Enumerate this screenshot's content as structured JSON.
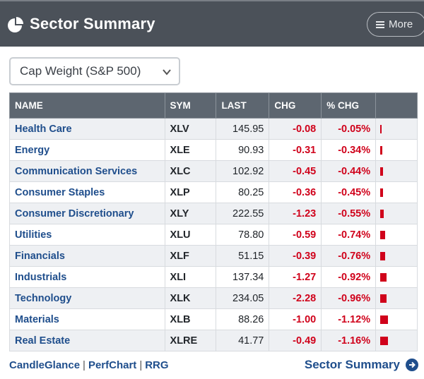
{
  "header": {
    "title": "Sector Summary",
    "more_label": "More"
  },
  "selector": {
    "value": "Cap Weight (S&P 500)"
  },
  "table": {
    "columns": [
      "NAME",
      "SYM",
      "LAST",
      "CHG",
      "% CHG",
      ""
    ],
    "rows": [
      {
        "name": "Health Care",
        "sym": "XLV",
        "last": "145.95",
        "chg": "-0.08",
        "pct": "-0.05%",
        "pct_value": -0.05
      },
      {
        "name": "Energy",
        "sym": "XLE",
        "last": "90.93",
        "chg": "-0.31",
        "pct": "-0.34%",
        "pct_value": -0.34
      },
      {
        "name": "Communication Services",
        "sym": "XLC",
        "last": "102.92",
        "chg": "-0.45",
        "pct": "-0.44%",
        "pct_value": -0.44
      },
      {
        "name": "Consumer Staples",
        "sym": "XLP",
        "last": "80.25",
        "chg": "-0.36",
        "pct": "-0.45%",
        "pct_value": -0.45
      },
      {
        "name": "Consumer Discretionary",
        "sym": "XLY",
        "last": "222.55",
        "chg": "-1.23",
        "pct": "-0.55%",
        "pct_value": -0.55
      },
      {
        "name": "Utilities",
        "sym": "XLU",
        "last": "78.80",
        "chg": "-0.59",
        "pct": "-0.74%",
        "pct_value": -0.74
      },
      {
        "name": "Financials",
        "sym": "XLF",
        "last": "51.15",
        "chg": "-0.39",
        "pct": "-0.76%",
        "pct_value": -0.76
      },
      {
        "name": "Industrials",
        "sym": "XLI",
        "last": "137.34",
        "chg": "-1.27",
        "pct": "-0.92%",
        "pct_value": -0.92
      },
      {
        "name": "Technology",
        "sym": "XLK",
        "last": "234.05",
        "chg": "-2.28",
        "pct": "-0.96%",
        "pct_value": -0.96
      },
      {
        "name": "Materials",
        "sym": "XLB",
        "last": "88.26",
        "chg": "-1.00",
        "pct": "-1.12%",
        "pct_value": -1.12
      },
      {
        "name": "Real Estate",
        "sym": "XLRE",
        "last": "41.77",
        "chg": "-0.49",
        "pct": "-1.16%",
        "pct_value": -1.16
      }
    ]
  },
  "footer": {
    "links": [
      "CandleGlance",
      "PerfChart",
      "RRG"
    ],
    "summary_link": "Sector Summary"
  },
  "colors": {
    "header_bg": "#4b5159",
    "link": "#1f4e8c",
    "negative": "#d0021b"
  },
  "icons": {
    "logo": "pie-chart-icon",
    "more": "menu-icon",
    "select": "chevron-down-icon",
    "summary": "arrow-circle-right-icon"
  }
}
